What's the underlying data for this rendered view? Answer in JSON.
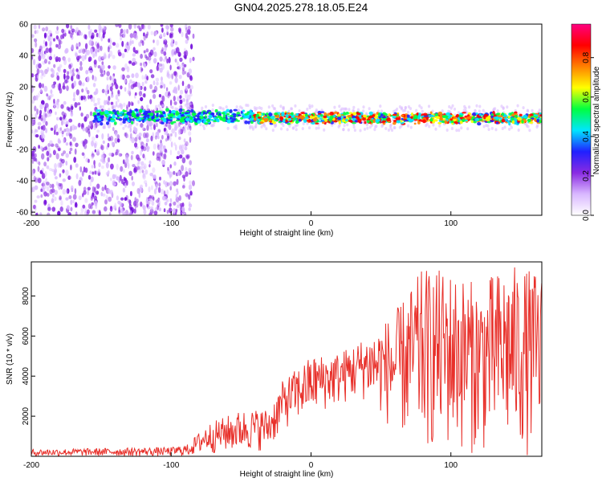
{
  "title": "GN04.2025.278.18.05.E24",
  "chart_data": [
    {
      "type": "heatmap",
      "xlabel": "Height of straight line (km)",
      "ylabel": "Frequency (Hz)",
      "xlim": [
        -200,
        165
      ],
      "ylim": [
        -62,
        60
      ],
      "xticks": [
        -200,
        -100,
        0,
        100
      ],
      "yticks": [
        60,
        40,
        20,
        0,
        -20,
        -40,
        -60
      ],
      "colorbar": {
        "label": "Normalized spectral amplitude",
        "range": [
          0,
          0.97
        ],
        "ticks": [
          "0.0",
          "0.2",
          "0.4",
          "0.6",
          "0.8"
        ],
        "colors": [
          "#ffffff",
          "#d9b8ff",
          "#8a2be2",
          "#2020ff",
          "#00e5ff",
          "#00ff40",
          "#ffff00",
          "#ff8000",
          "#ff0000",
          "#ff0080"
        ]
      },
      "regions": [
        {
          "x_range": [
            -200,
            -86
          ],
          "freq_range": [
            -62,
            60
          ],
          "level": "broadband scattered amplitude 0.05–0.3"
        },
        {
          "x_range": [
            -155,
            -40
          ],
          "freq_center": 1,
          "band_halfwidth": 5,
          "level": "0.2–0.5"
        },
        {
          "x_range": [
            -40,
            165
          ],
          "freq_center": 0,
          "band_halfwidth": 4,
          "level": "0.3–0.95"
        }
      ]
    },
    {
      "type": "line",
      "xlabel": "Height of straight line (km)",
      "ylabel": "SNR (10 * v/v)",
      "xlim": [
        -200,
        165
      ],
      "ylim": [
        0,
        9700
      ],
      "xticks": [
        -200,
        -100,
        0,
        100
      ],
      "yticks": [
        2000,
        4000,
        6000,
        8000
      ],
      "series": [
        {
          "color": "#e8302a",
          "envelope": [
            {
              "x": -200,
              "low": 0,
              "high": 350
            },
            {
              "x": -150,
              "low": 0,
              "high": 400
            },
            {
              "x": -100,
              "low": 0,
              "high": 450
            },
            {
              "x": -88,
              "low": 0,
              "high": 600
            },
            {
              "x": -75,
              "low": 100,
              "high": 1600
            },
            {
              "x": -50,
              "low": 200,
              "high": 2300
            },
            {
              "x": -30,
              "low": 300,
              "high": 2400
            },
            {
              "x": -20,
              "low": 1300,
              "high": 3800
            },
            {
              "x": 0,
              "low": 2000,
              "high": 5000
            },
            {
              "x": 20,
              "low": 2500,
              "high": 5200
            },
            {
              "x": 40,
              "low": 2800,
              "high": 6000
            },
            {
              "x": 60,
              "low": 1000,
              "high": 7200
            },
            {
              "x": 80,
              "low": 200,
              "high": 9400
            },
            {
              "x": 100,
              "low": 100,
              "high": 9300
            },
            {
              "x": 120,
              "low": 100,
              "high": 8600
            },
            {
              "x": 140,
              "low": 0,
              "high": 9600
            },
            {
              "x": 165,
              "low": 0,
              "high": 9200
            }
          ]
        }
      ]
    }
  ]
}
